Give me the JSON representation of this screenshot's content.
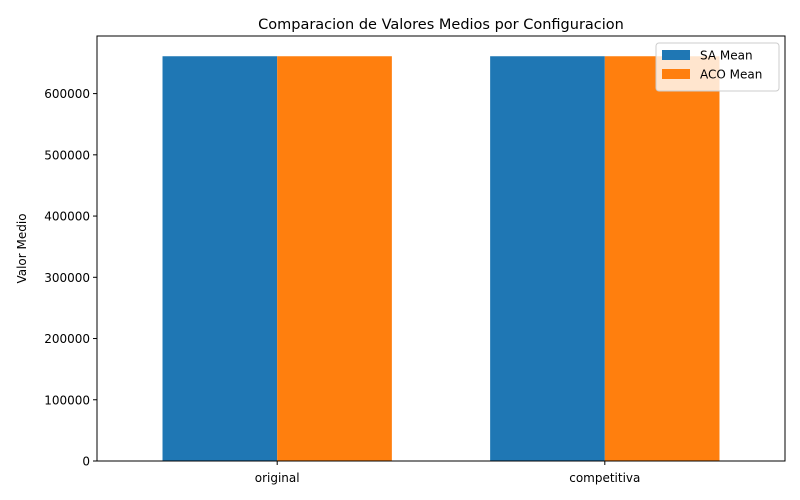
{
  "chart_data": {
    "type": "bar",
    "title": "Comparacion de Valores Medios por Configuracion",
    "xlabel": "",
    "ylabel": "Valor Medio",
    "categories": [
      "original",
      "competitiva"
    ],
    "series": [
      {
        "name": "SA Mean",
        "color": "#1f77b4",
        "values": [
          661000,
          661000
        ]
      },
      {
        "name": "ACO Mean",
        "color": "#ff7f0e",
        "values": [
          661000,
          661000
        ]
      }
    ],
    "ylim": [
      0,
      694050
    ],
    "yticks": [
      0,
      100000,
      200000,
      300000,
      400000,
      500000,
      600000
    ],
    "grid": false,
    "legend_position": "top-right"
  }
}
